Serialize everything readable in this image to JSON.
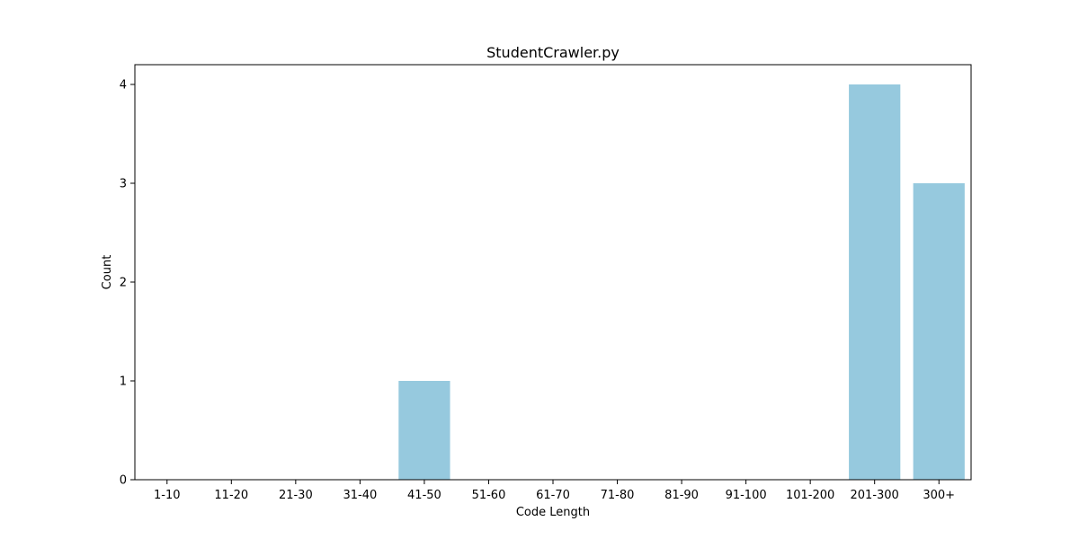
{
  "chart_data": {
    "type": "bar",
    "title": "StudentCrawler.py",
    "xlabel": "Code Length",
    "ylabel": "Count",
    "categories": [
      "1-10",
      "11-20",
      "21-30",
      "31-40",
      "41-50",
      "51-60",
      "61-70",
      "71-80",
      "81-90",
      "91-100",
      "101-200",
      "201-300",
      "300+"
    ],
    "values": [
      0,
      0,
      0,
      0,
      1,
      0,
      0,
      0,
      0,
      0,
      0,
      4,
      3
    ],
    "ylim": [
      0,
      4.2
    ],
    "yticks": [
      0,
      1,
      2,
      3,
      4
    ],
    "grid": false,
    "bar_color": "#96c9de",
    "axis_color": "#000000",
    "background": "#ffffff"
  }
}
